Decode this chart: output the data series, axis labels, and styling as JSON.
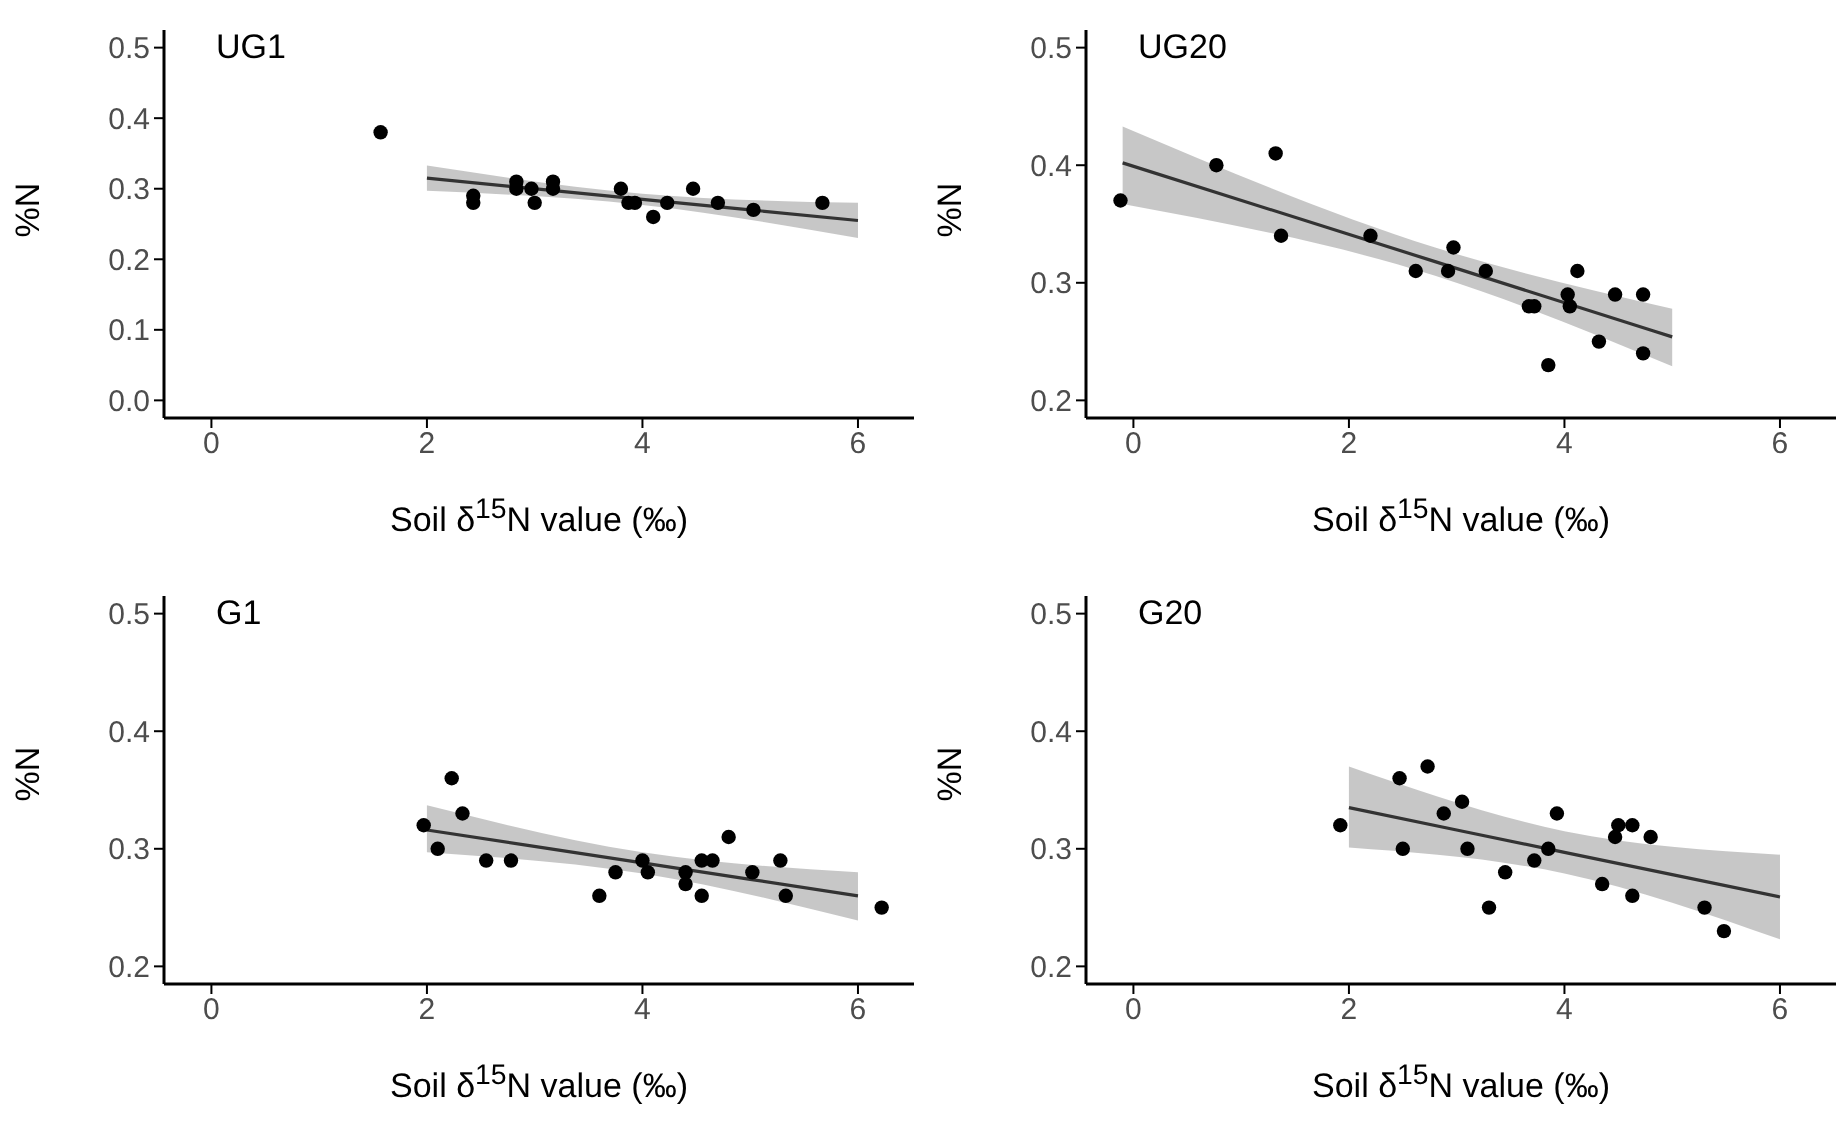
{
  "chart_data": [
    {
      "type": "scatter",
      "title": "UG1",
      "xlabel": "Soil δ$^{15}$N value (‰)",
      "ylabel": "%N",
      "xlim": [
        -0.44,
        6.52
      ],
      "xticks": [
        0,
        2,
        4,
        6
      ],
      "ylim": [
        -0.025,
        0.525
      ],
      "yticks": [
        {
          "value": 0,
          "label": "0.0"
        },
        0.1,
        0.2,
        0.3,
        0.4,
        0.5
      ],
      "grid": false,
      "legend": false,
      "marker": "circle",
      "series": [
        {
          "color": "#000000",
          "x": [
            1.57,
            2.43,
            2.43,
            2.83,
            2.83,
            2.97,
            3.0,
            3.17,
            3.17,
            3.8,
            3.87,
            3.93,
            4.1,
            4.23,
            4.47,
            4.7,
            5.03,
            5.67
          ],
          "values": [
            0.38,
            0.29,
            0.28,
            0.31,
            0.3,
            0.3,
            0.28,
            0.31,
            0.3,
            0.3,
            0.28,
            0.28,
            0.26,
            0.28,
            0.3,
            0.28,
            0.27,
            0.28
          ]
        },
        {
          "type": "line",
          "color": "#333333",
          "marker": "none",
          "x": [
            2,
            4,
            6
          ],
          "values": [
            0.315,
            0.285,
            0.255
          ],
          "lower": [
            0.297,
            0.277,
            0.23
          ],
          "upper": [
            0.333,
            0.293,
            0.28
          ]
        }
      ]
    },
    {
      "type": "scatter",
      "title": "UG20",
      "xlabel": "Soil δ$^{15}$N value (‰)",
      "ylabel": "%N",
      "xlim": [
        -0.44,
        6.52
      ],
      "xticks": [
        0,
        2,
        4,
        6
      ],
      "ylim": [
        0.185,
        0.515
      ],
      "yticks": [
        0.2,
        0.3,
        0.4,
        0.5
      ],
      "grid": false,
      "legend": false,
      "marker": "circle",
      "series": [
        {
          "color": "#000000",
          "x": [
            -0.12,
            0.77,
            1.32,
            1.37,
            2.2,
            2.62,
            2.92,
            2.97,
            3.27,
            3.67,
            3.72,
            3.85,
            4.03,
            4.05,
            4.12,
            4.32,
            4.47,
            4.73,
            4.73
          ],
          "values": [
            0.37,
            0.4,
            0.41,
            0.34,
            0.34,
            0.31,
            0.31,
            0.33,
            0.31,
            0.28,
            0.28,
            0.23,
            0.29,
            0.28,
            0.31,
            0.25,
            0.29,
            0.29,
            0.24
          ]
        },
        {
          "type": "line",
          "color": "#333333",
          "marker": "none",
          "x": [
            -0.1,
            2.8,
            5
          ],
          "values": [
            0.402,
            0.318,
            0.254
          ],
          "lower": [
            0.367,
            0.306,
            0.229
          ],
          "upper": [
            0.433,
            0.33,
            0.278
          ]
        }
      ]
    },
    {
      "type": "scatter",
      "title": "G1",
      "xlabel": "Soil δ$^{15}$N value (‰)",
      "ylabel": "%N",
      "xlim": [
        -0.44,
        6.52
      ],
      "xticks": [
        0,
        2,
        4,
        6
      ],
      "ylim": [
        0.185,
        0.515
      ],
      "yticks": [
        0.2,
        0.3,
        0.4,
        0.5
      ],
      "grid": false,
      "legend": false,
      "marker": "circle",
      "series": [
        {
          "color": "#000000",
          "x": [
            1.97,
            2.1,
            2.23,
            2.33,
            2.55,
            2.78,
            3.6,
            3.75,
            4.0,
            4.05,
            4.4,
            4.4,
            4.55,
            4.55,
            4.65,
            4.8,
            5.02,
            5.28,
            5.33,
            6.22
          ],
          "values": [
            0.32,
            0.3,
            0.36,
            0.33,
            0.29,
            0.29,
            0.26,
            0.28,
            0.29,
            0.28,
            0.28,
            0.27,
            0.29,
            0.26,
            0.29,
            0.31,
            0.28,
            0.29,
            0.26,
            0.25
          ]
        },
        {
          "type": "line",
          "color": "#333333",
          "marker": "none",
          "x": [
            2,
            4,
            6
          ],
          "values": [
            0.316,
            0.288,
            0.26
          ],
          "lower": [
            0.297,
            0.279,
            0.239
          ],
          "upper": [
            0.337,
            0.297,
            0.28
          ]
        }
      ]
    },
    {
      "type": "scatter",
      "title": "G20",
      "xlabel": "Soil δ$^{15}$N value (‰)",
      "ylabel": "%N",
      "xlim": [
        -0.44,
        6.52
      ],
      "xticks": [
        0,
        2,
        4,
        6
      ],
      "ylim": [
        0.185,
        0.515
      ],
      "yticks": [
        0.2,
        0.3,
        0.4,
        0.5
      ],
      "grid": false,
      "legend": false,
      "marker": "circle",
      "series": [
        {
          "color": "#000000",
          "x": [
            1.92,
            2.47,
            2.5,
            2.73,
            2.88,
            3.05,
            3.1,
            3.3,
            3.45,
            3.72,
            3.85,
            3.93,
            4.35,
            4.47,
            4.5,
            4.63,
            4.63,
            4.8,
            5.3,
            5.48
          ],
          "values": [
            0.32,
            0.36,
            0.3,
            0.37,
            0.33,
            0.34,
            0.3,
            0.25,
            0.28,
            0.29,
            0.3,
            0.33,
            0.27,
            0.31,
            0.32,
            0.32,
            0.26,
            0.31,
            0.25,
            0.23
          ]
        },
        {
          "type": "line",
          "color": "#333333",
          "marker": "none",
          "x": [
            2,
            4,
            6
          ],
          "values": [
            0.335,
            0.297,
            0.259
          ],
          "lower": [
            0.301,
            0.279,
            0.223
          ],
          "upper": [
            0.37,
            0.315,
            0.295
          ]
        }
      ]
    }
  ]
}
